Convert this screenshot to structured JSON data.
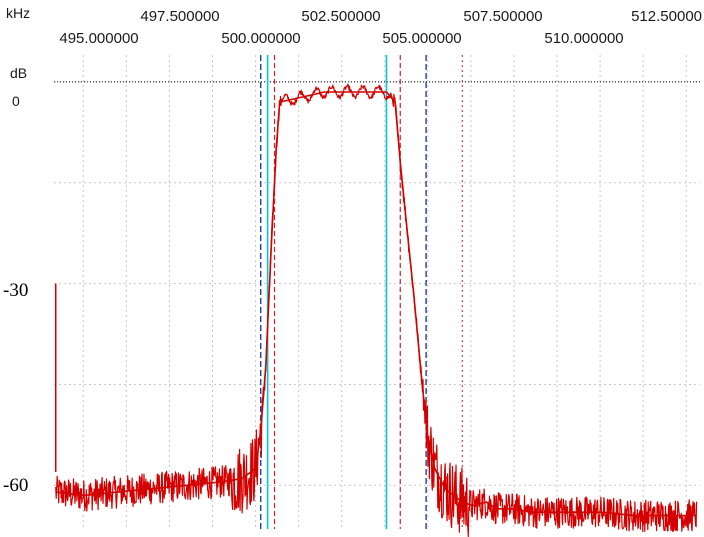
{
  "chart_data": {
    "type": "line",
    "title": "",
    "xlabel": "kHz",
    "ylabel": "dB",
    "xlim": [
      494.15,
      512.9
    ],
    "ylim": [
      -66.5,
      4.0
    ],
    "x_ticks_upper": [
      "497.500000",
      "502.500000",
      "507.500000",
      "512.50000"
    ],
    "x_ticks_lower": [
      "495.000000",
      "500.000000",
      "505.000000",
      "510.000000"
    ],
    "y_ticks": [
      "0",
      "-30",
      "-60"
    ],
    "grid": true,
    "grid_style": "dotted",
    "reference_level_db": 0,
    "colors": {
      "trace": "#d40000",
      "grid": "#c8c8c8",
      "cyan_marker": "#00c8d8",
      "blue_marker": "#1030a0",
      "red_marker": "#d02020",
      "reference_line": "#000000"
    },
    "markers": {
      "cyan_solid": [
        500.35,
        503.8
      ],
      "blue_dashed": [
        500.15,
        504.95
      ],
      "red_dashed": [
        500.55,
        504.2
      ],
      "red_dotted": [
        506.0
      ]
    },
    "series": [
      {
        "x": [
          494.2,
          495.0,
          496.0,
          497.0,
          498.0,
          499.0,
          499.6,
          500.0,
          500.15,
          500.3,
          500.45,
          500.6,
          500.7,
          502.0,
          503.8,
          504.05,
          504.2,
          504.4,
          504.6,
          504.8,
          505.0,
          505.2,
          505.5,
          506.0,
          506.3,
          506.7,
          507.0,
          507.5,
          508.0,
          509.0,
          510.0,
          511.0,
          512.0,
          512.8
        ],
        "y": [
          -61.0,
          -61.5,
          -61.0,
          -60.5,
          -60.0,
          -59.5,
          -59.0,
          -57.5,
          -52.0,
          -42.0,
          -25.0,
          -10.0,
          -3.0,
          -1.5,
          -1.5,
          -3.0,
          -12.0,
          -22.0,
          -32.0,
          -43.0,
          -53.0,
          -57.5,
          -60.5,
          -62.5,
          -63.0,
          -62.5,
          -63.5,
          -63.5,
          -64.0,
          -64.0,
          -64.0,
          -64.5,
          -64.5,
          -64.5
        ]
      }
    ]
  }
}
